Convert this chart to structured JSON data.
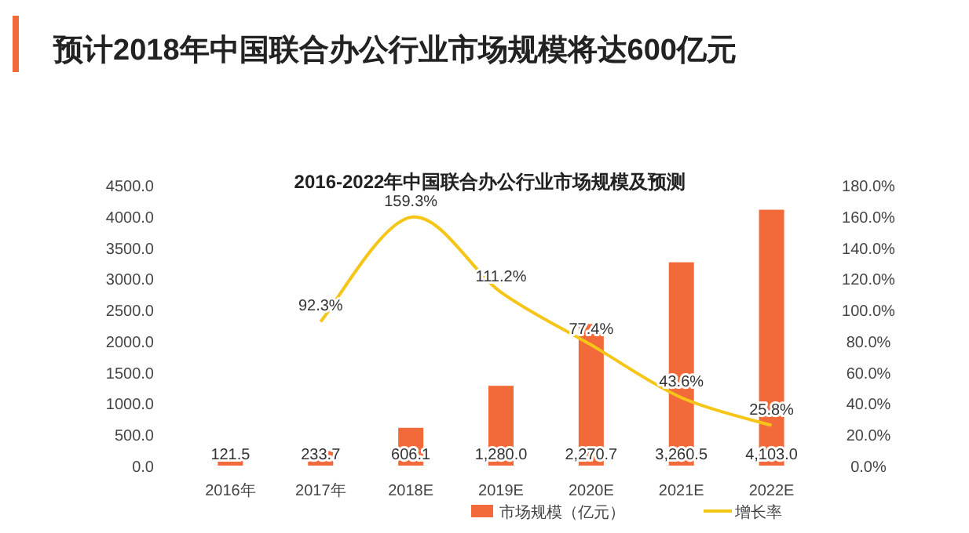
{
  "chart_data": {
    "type": "bar",
    "title": "预计2018年中国联合办公行业市场规模将达600亿元",
    "subtitle": "2016-2022年中国联合办公行业市场规模及预测",
    "categories": [
      "2016年",
      "2017年",
      "2018E",
      "2019E",
      "2020E",
      "2021E",
      "2022E"
    ],
    "series": [
      {
        "name": "市场规模（亿元）",
        "color": "#f26a3a",
        "values": [
          121.5,
          233.7,
          606.1,
          1280.0,
          2270.7,
          3260.5,
          4103.0
        ],
        "value_labels": [
          "121.5",
          "233.7",
          "606.1",
          "1,280.0",
          "2,270.7",
          "3,260.5",
          "4,103.0"
        ]
      },
      {
        "name": "增长率",
        "type": "line",
        "axis": "y2",
        "color": "#f5c518",
        "values": [
          null,
          92.3,
          159.3,
          111.2,
          77.4,
          43.6,
          25.8
        ],
        "value_labels": [
          null,
          "92.3%",
          "159.3%",
          "111.2%",
          "77.4%",
          "43.6%",
          "25.8%"
        ]
      }
    ],
    "ylim": [
      0,
      4500
    ],
    "yticks": [
      {
        "value": 0,
        "label": "0.0"
      },
      {
        "value": 500,
        "label": "500.0"
      },
      {
        "value": 1000,
        "label": "1000.0"
      },
      {
        "value": 1500,
        "label": "1500.0"
      },
      {
        "value": 2000,
        "label": "2000.0"
      },
      {
        "value": 2500,
        "label": "2500.0"
      },
      {
        "value": 3000,
        "label": "3000.0"
      },
      {
        "value": 3500,
        "label": "3500.0"
      },
      {
        "value": 4000,
        "label": "4000.0"
      },
      {
        "value": 4500,
        "label": "4500.0"
      }
    ],
    "y2lim": [
      0,
      180
    ],
    "y2ticks": [
      {
        "value": 0,
        "label": "0.0%"
      },
      {
        "value": 20,
        "label": "20.0%"
      },
      {
        "value": 40,
        "label": "40.0%"
      },
      {
        "value": 60,
        "label": "60.0%"
      },
      {
        "value": 80,
        "label": "80.0%"
      },
      {
        "value": 100,
        "label": "100.0%"
      },
      {
        "value": 120,
        "label": "120.0%"
      },
      {
        "value": 140,
        "label": "140.0%"
      },
      {
        "value": 160,
        "label": "160.0%"
      },
      {
        "value": 180,
        "label": "180.0%"
      }
    ],
    "legend": "bottom",
    "grid": false
  }
}
